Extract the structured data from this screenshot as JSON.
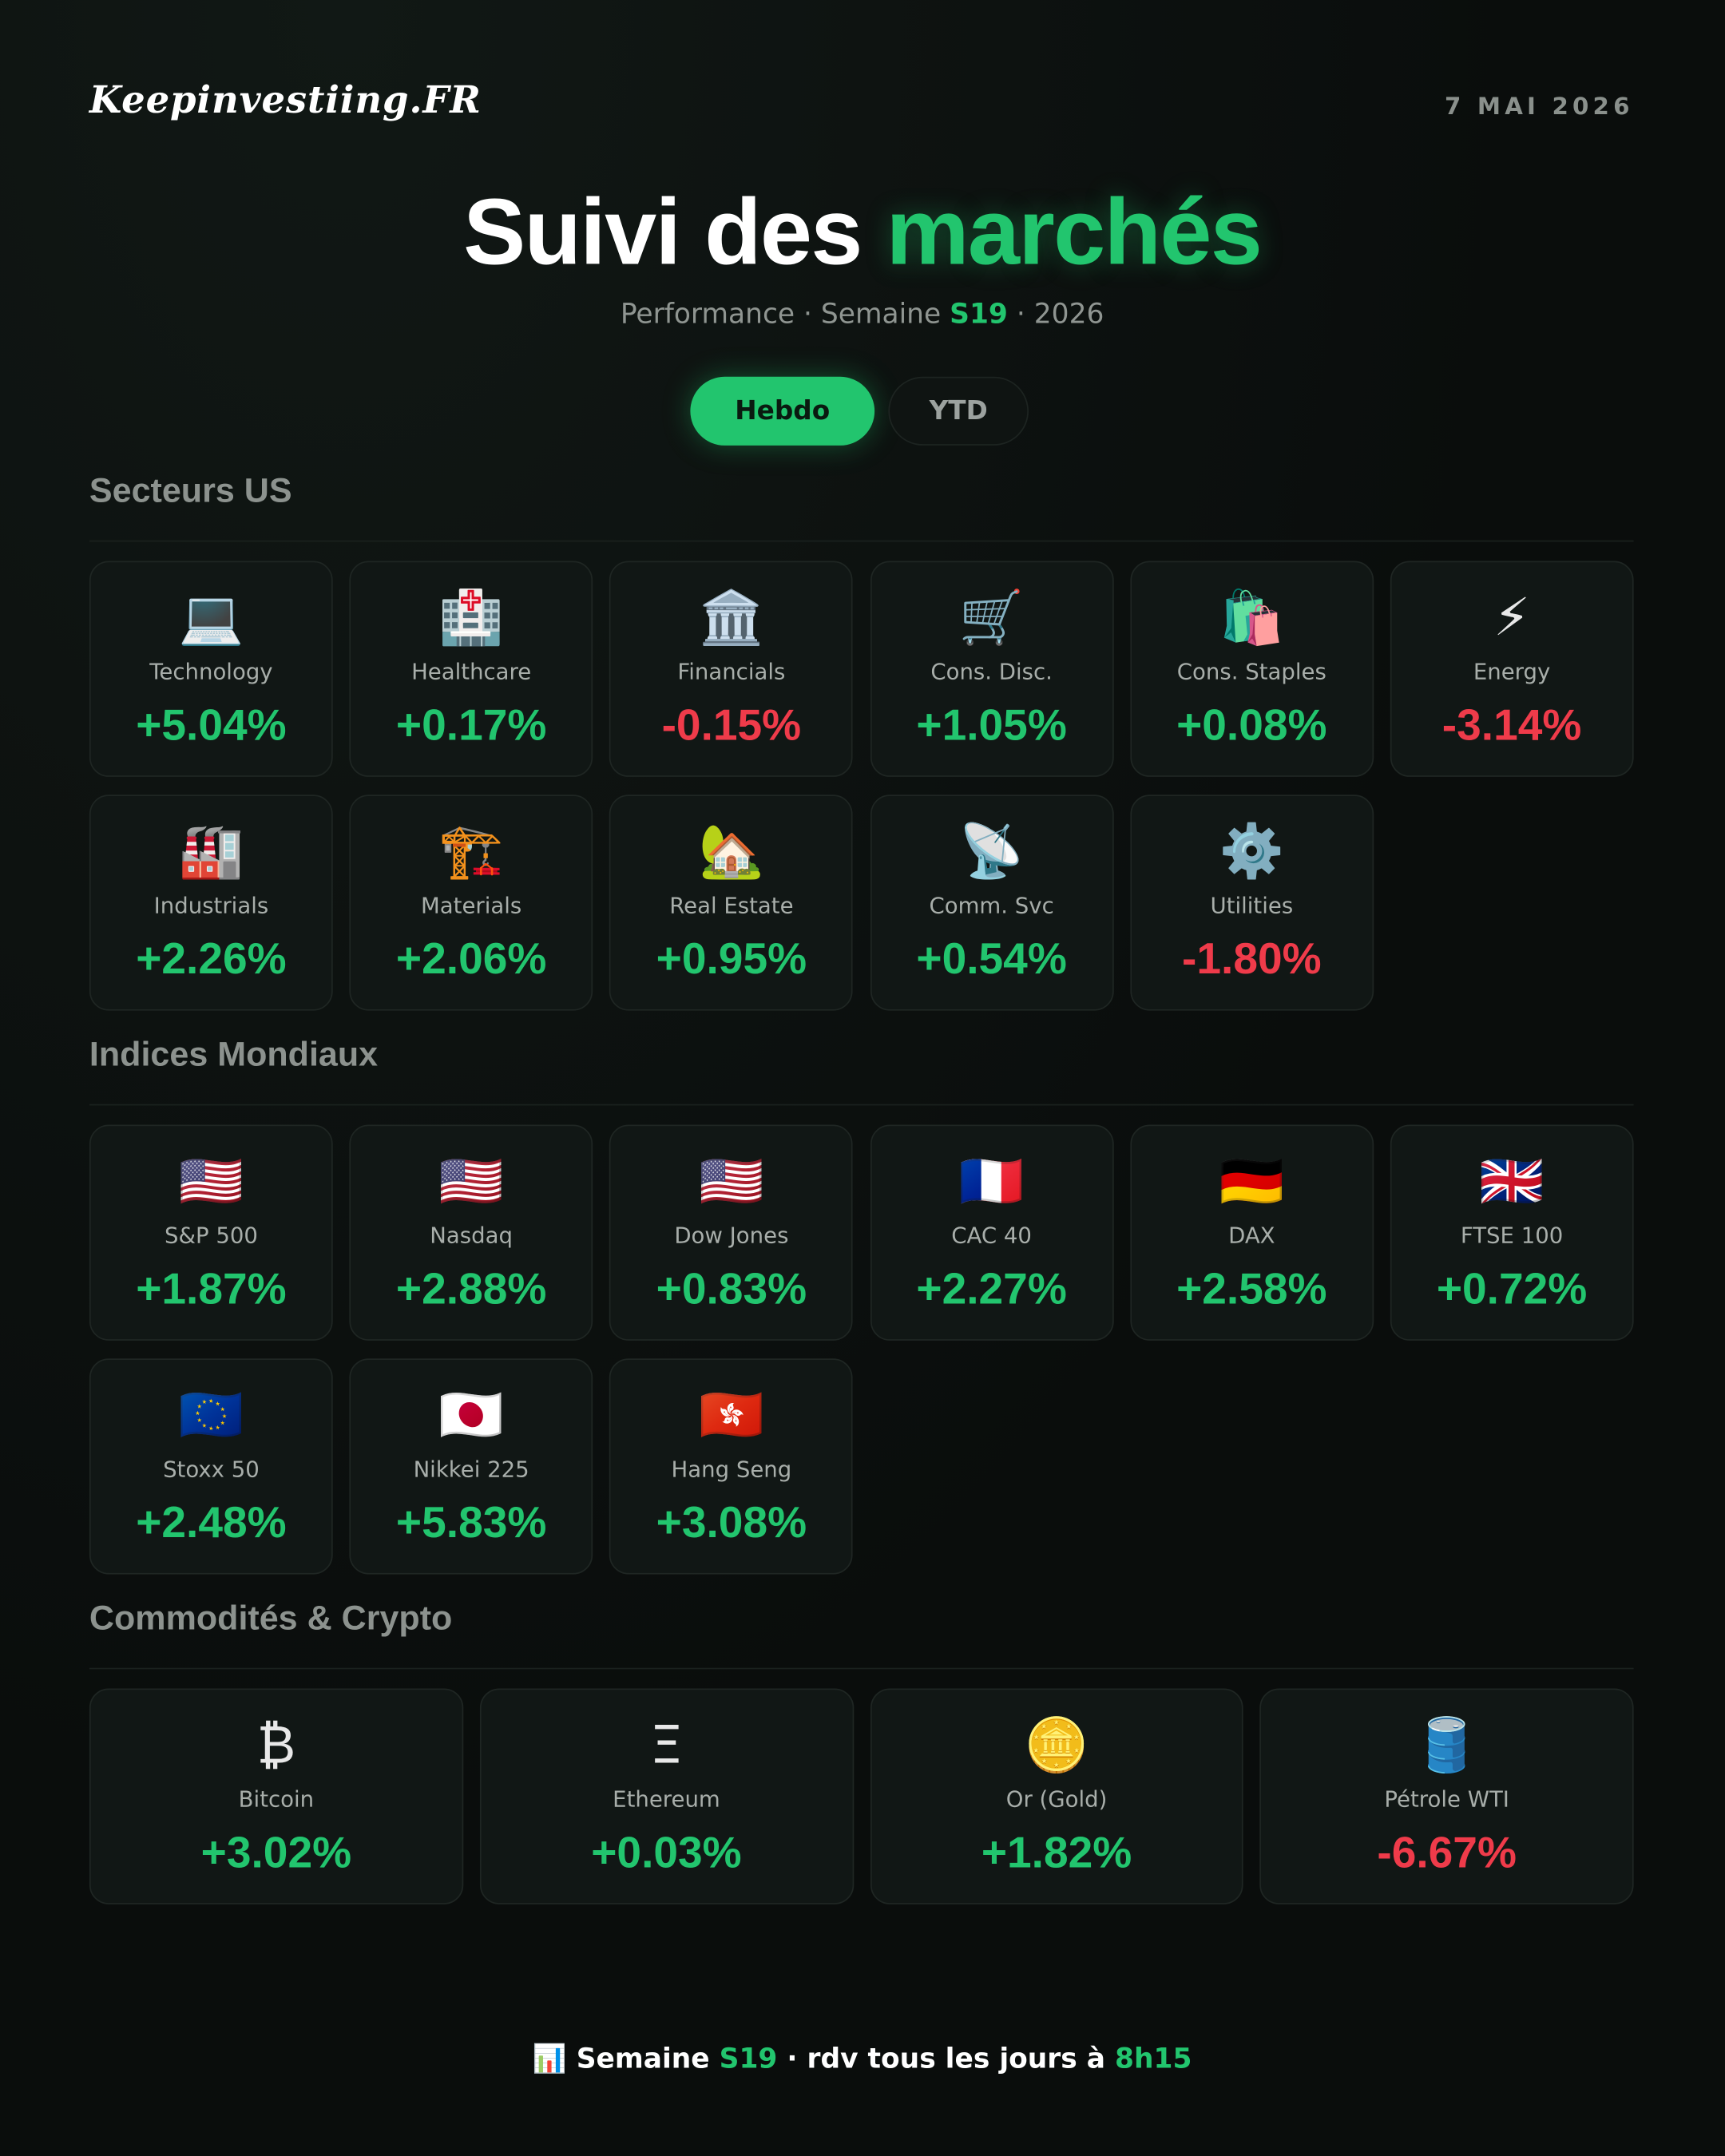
{
  "header": {
    "logo": "Keepinvestiing.FR",
    "date": "7 MAI 2026"
  },
  "title": {
    "part1": "Suivi des",
    "part2": "marchés"
  },
  "subtitle": {
    "before": "Performance · Semaine",
    "week": "S19",
    "after": "· 2026"
  },
  "tabs": [
    "Hebdo",
    "YTD"
  ],
  "sections": [
    {
      "title": "Secteurs US",
      "cards": [
        {
          "icon": "💻",
          "name": "Technology",
          "value": "+5.04%"
        },
        {
          "icon": "🏥",
          "name": "Healthcare",
          "value": "+0.17%"
        },
        {
          "icon": "🏛️",
          "name": "Financials",
          "value": "-0.15%"
        },
        {
          "icon": "🛒",
          "name": "Cons. Disc.",
          "value": "+1.05%"
        },
        {
          "icon": "🛍️",
          "name": "Cons. Staples",
          "value": "+0.08%"
        },
        {
          "icon": "⚡",
          "name": "Energy",
          "value": "-3.14%"
        },
        {
          "icon": "🏭",
          "name": "Industrials",
          "value": "+2.26%"
        },
        {
          "icon": "🏗️",
          "name": "Materials",
          "value": "+2.06%"
        },
        {
          "icon": "🏡",
          "name": "Real Estate",
          "value": "+0.95%"
        },
        {
          "icon": "📡",
          "name": "Comm. Svc",
          "value": "+0.54%"
        },
        {
          "icon": "⚙️",
          "name": "Utilities",
          "value": "-1.80%"
        }
      ]
    },
    {
      "title": "Indices Mondiaux",
      "cards": [
        {
          "icon": "🇺🇸",
          "name": "S&P 500",
          "value": "+1.87%"
        },
        {
          "icon": "🇺🇸",
          "name": "Nasdaq",
          "value": "+2.88%"
        },
        {
          "icon": "🇺🇸",
          "name": "Dow Jones",
          "value": "+0.83%"
        },
        {
          "icon": "🇫🇷",
          "name": "CAC 40",
          "value": "+2.27%"
        },
        {
          "icon": "🇩🇪",
          "name": "DAX",
          "value": "+2.58%"
        },
        {
          "icon": "🇬🇧",
          "name": "FTSE 100",
          "value": "+0.72%"
        },
        {
          "icon": "🇪🇺",
          "name": "Stoxx 50",
          "value": "+2.48%"
        },
        {
          "icon": "🇯🇵",
          "name": "Nikkei 225",
          "value": "+5.83%"
        },
        {
          "icon": "🇭🇰",
          "name": "Hang Seng",
          "value": "+3.08%"
        }
      ]
    },
    {
      "title": "Commodités & Crypto",
      "cards": [
        {
          "icon": "₿",
          "name": "Bitcoin",
          "value": "+3.02%"
        },
        {
          "icon": "Ξ",
          "name": "Ethereum",
          "value": "+0.03%"
        },
        {
          "icon": "🪙",
          "name": "Or (Gold)",
          "value": "+1.82%"
        },
        {
          "icon": "🛢️",
          "name": "Pétrole WTI",
          "value": "-6.67%"
        }
      ]
    }
  ],
  "footer": {
    "icon": "📊",
    "before": "Semaine",
    "week": "S19",
    "middle": "· rdv tous les jours à",
    "time": "8h15"
  }
}
